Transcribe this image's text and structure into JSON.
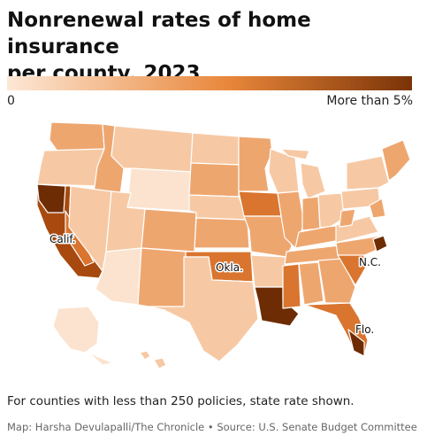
{
  "title": {
    "line1": "Nonrenewal rates of home insurance",
    "line2": "per county, 2023"
  },
  "legend": {
    "min_label": "0",
    "max_label": "More than 5%",
    "color_low": "#fde8d6",
    "color_mid": "#e8863a",
    "color_high": "#7a3307"
  },
  "map": {
    "labels": {
      "calif": "Calif.",
      "okla": "Okla.",
      "nc": "N.C.",
      "flo": "Flo."
    },
    "colors": {
      "very_light": "#fbe3cf",
      "light": "#f6c9a4",
      "medium": "#eea66f",
      "medium_dark": "#d9752f",
      "dark": "#a8490f",
      "darkest": "#6e2c05",
      "border": "#ffffff"
    }
  },
  "footnote": "For counties with less than 250 policies, state rate shown.",
  "credit": "Map: Harsha Devulapalli/The Chronicle • Source: U.S. Senate Budget Committee"
}
